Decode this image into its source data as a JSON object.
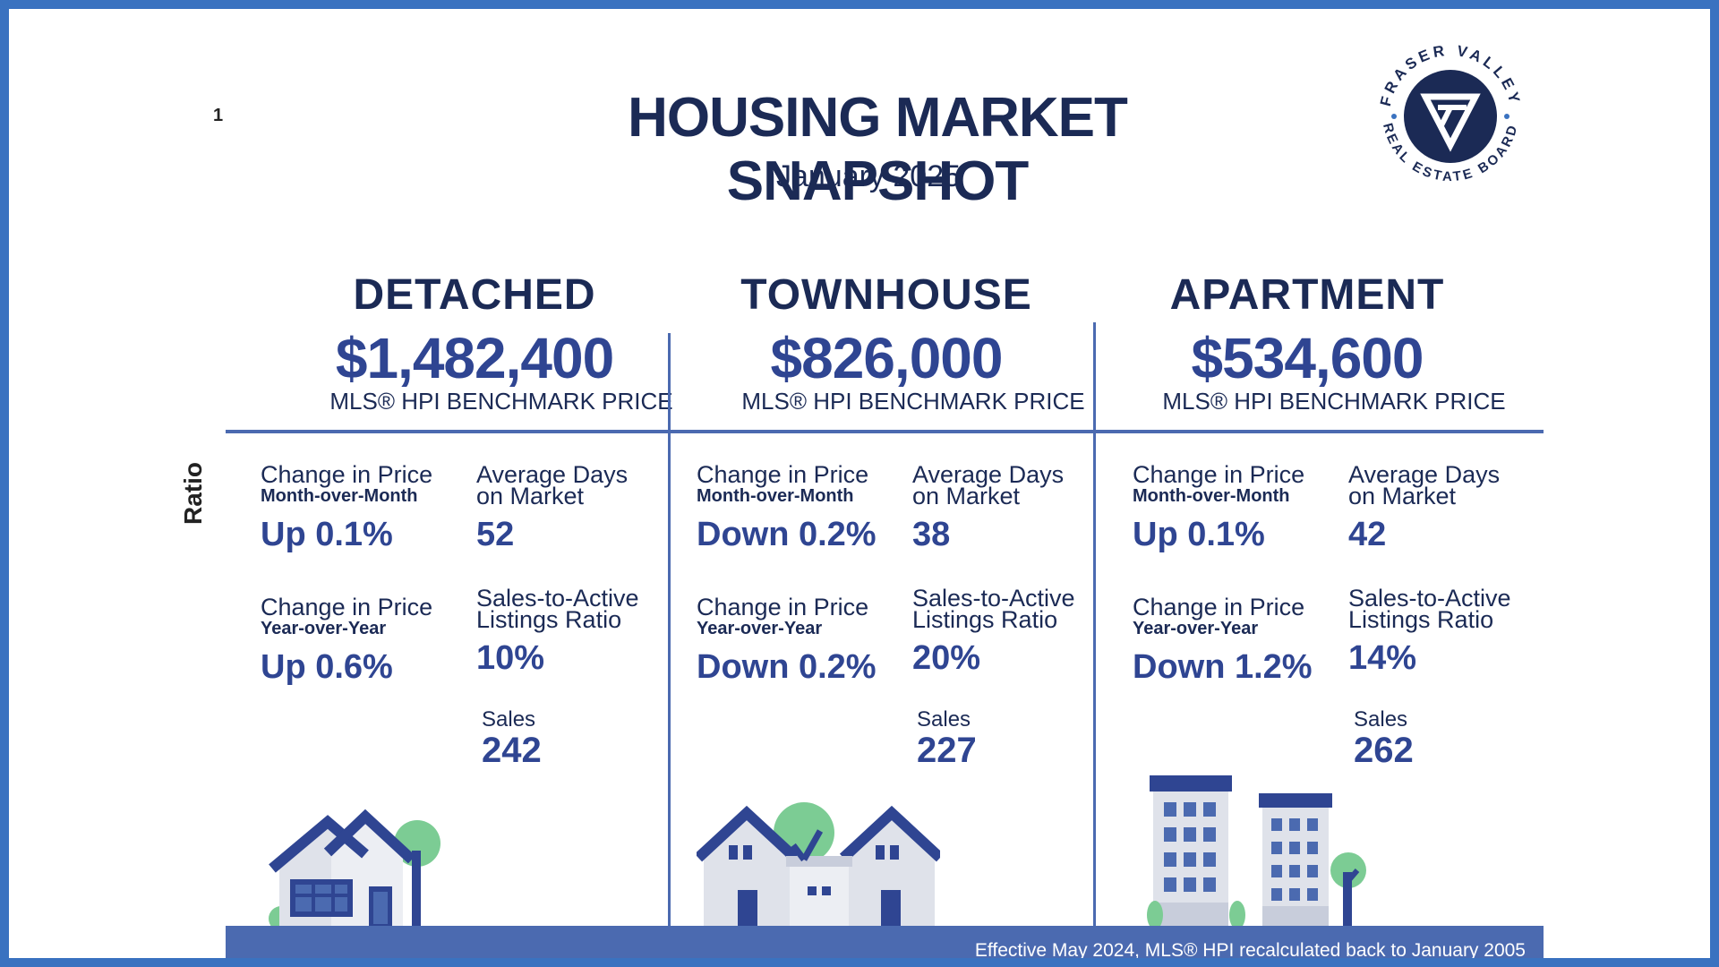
{
  "page": {
    "ghost_mark": "1",
    "side_label": "Ratio",
    "title": "HOUSING MARKET SNAPSHOT",
    "subtitle": "January 2025",
    "footer_note": "Effective May 2024, MLS® HPI recalculated back to January 2005"
  },
  "logo": {
    "text_top": "FRASER VALLEY",
    "text_bottom": "REAL ESTATE BOARD",
    "icon": "fraser-valley-logo-icon",
    "color": "#1b2a55"
  },
  "colors": {
    "frame": "#3a72c0",
    "navy": "#1b2a55",
    "accent": "#2f4592",
    "bar": "#4b6ab0",
    "green": "#7ccc94"
  },
  "columns": [
    {
      "name": "DETACHED",
      "price": "$1,482,400",
      "benchmark_label": "MLS® HPI BENCHMARK PRICE",
      "mom_label": "Change in Price",
      "mom_sub": "Month-over-Month",
      "mom_value": "Up 0.1%",
      "dom_label_1": "Average Days",
      "dom_label_2": "on Market",
      "dom_value": "52",
      "yoy_label": "Change in Price",
      "yoy_sub": "Year-over-Year",
      "yoy_value": "Up 0.6%",
      "ratio_label_1": "Sales-to-Active",
      "ratio_label_2": "Listings Ratio",
      "ratio_value": "10%",
      "sales_label": "Sales",
      "sales_value": "242"
    },
    {
      "name": "TOWNHOUSE",
      "price": "$826,000",
      "benchmark_label": "MLS® HPI BENCHMARK PRICE",
      "mom_label": "Change in Price",
      "mom_sub": "Month-over-Month",
      "mom_value": "Down 0.2%",
      "dom_label_1": "Average Days",
      "dom_label_2": "on Market",
      "dom_value": "38",
      "yoy_label": "Change in Price",
      "yoy_sub": "Year-over-Year",
      "yoy_value": "Down 0.2%",
      "ratio_label_1": "Sales-to-Active",
      "ratio_label_2": "Listings Ratio",
      "ratio_value": "20%",
      "sales_label": "Sales",
      "sales_value": "227"
    },
    {
      "name": "APARTMENT",
      "price": "$534,600",
      "benchmark_label": "MLS® HPI BENCHMARK PRICE",
      "mom_label": "Change in Price",
      "mom_sub": "Month-over-Month",
      "mom_value": "Up 0.1%",
      "dom_label_1": "Average Days",
      "dom_label_2": "on Market",
      "dom_value": "42",
      "yoy_label": "Change in Price",
      "yoy_sub": "Year-over-Year",
      "yoy_value": "Down 1.2%",
      "ratio_label_1": "Sales-to-Active",
      "ratio_label_2": "Listings Ratio",
      "ratio_value": "14%",
      "sales_label": "Sales",
      "sales_value": "262"
    }
  ],
  "illustrations": [
    "detached-house-icon",
    "townhouse-icon",
    "apartment-building-icon"
  ]
}
